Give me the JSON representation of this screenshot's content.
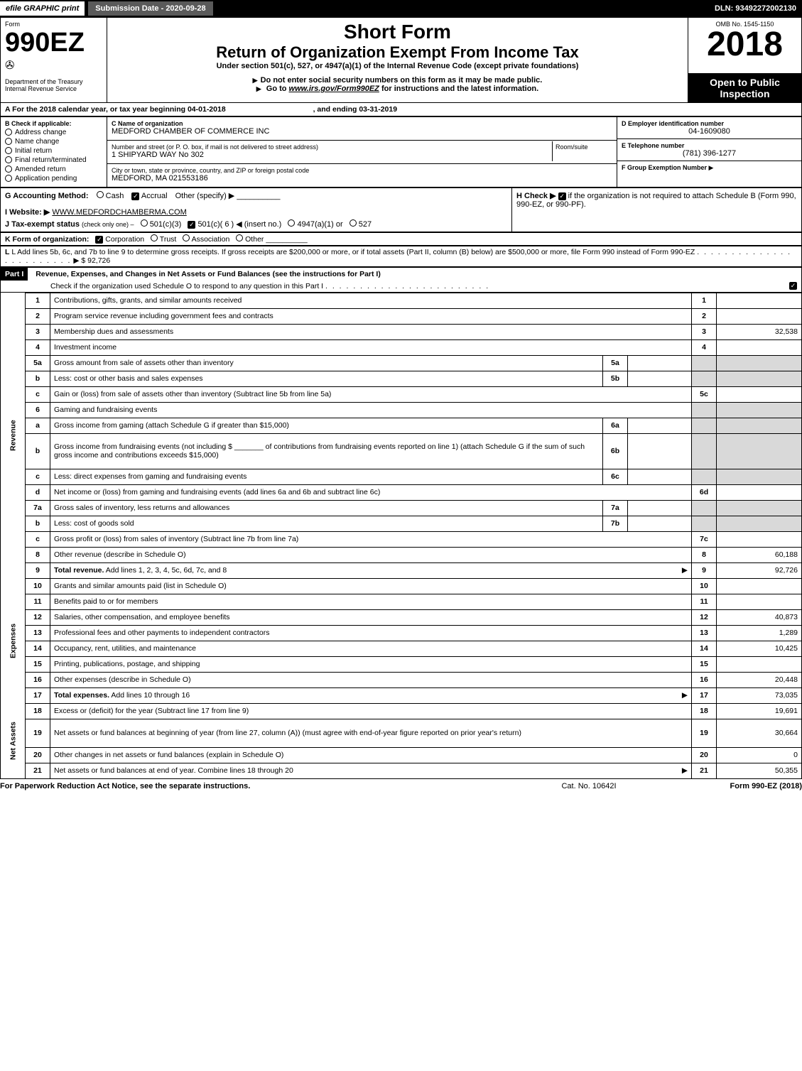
{
  "topbar": {
    "efile": "efile GRAPHIC print",
    "submission": "Submission Date - 2020-09-28",
    "dln": "DLN: 93492272002130"
  },
  "header": {
    "form_label": "Form",
    "form_number": "990EZ",
    "dept": "Department of the Treasury",
    "irs": "Internal Revenue Service",
    "short_form": "Short Form",
    "return_title": "Return of Organization Exempt From Income Tax",
    "subtitle": "Under section 501(c), 527, or 4947(a)(1) of the Internal Revenue Code (except private foundations)",
    "warning": "Do not enter social security numbers on this form as it may be made public.",
    "goto": "Go to",
    "goto_url": "www.irs.gov/Form990EZ",
    "goto_tail": "for instructions and the latest information.",
    "omb": "OMB No. 1545-1150",
    "year": "2018",
    "open": "Open to Public Inspection"
  },
  "period": {
    "line_a": "A For the 2018 calendar year, or tax year beginning 04-01-2018",
    "ending": ", and ending 03-31-2019"
  },
  "box_b": {
    "label": "B Check if applicable:",
    "items": [
      "Address change",
      "Name change",
      "Initial return",
      "Final return/terminated",
      "Amended return",
      "Application pending"
    ]
  },
  "box_c": {
    "name_label": "C Name of organization",
    "name": "MEDFORD CHAMBER OF COMMERCE INC",
    "street_label": "Number and street (or P. O. box, if mail is not delivered to street address)",
    "street": "1 SHIPYARD WAY No 302",
    "room_label": "Room/suite",
    "city_label": "City or town, state or province, country, and ZIP or foreign postal code",
    "city": "MEDFORD, MA  021553186"
  },
  "box_d": {
    "label": "D Employer identification number",
    "value": "04-1609080"
  },
  "box_e": {
    "label": "E Telephone number",
    "value": "(781) 396-1277"
  },
  "box_f": {
    "label": "F Group Exemption Number",
    "arrow": "▶"
  },
  "box_g": {
    "label": "G Accounting Method:",
    "cash": "Cash",
    "accrual": "Accrual",
    "other": "Other (specify) ▶"
  },
  "box_h": {
    "label_pre": "H Check ▶",
    "label_post": "if the organization is not required to attach Schedule B (Form 990, 990-EZ, or 990-PF)."
  },
  "box_i": {
    "label": "I Website: ▶",
    "value": "WWW.MEDFORDCHAMBERMA.COM"
  },
  "box_j": {
    "label": "J Tax-exempt status",
    "hint": "(check only one) –",
    "opt1": "501(c)(3)",
    "opt2": "501(c)( 6 )",
    "opt2_hint": "◀ (insert no.)",
    "opt3": "4947(a)(1) or",
    "opt4": "527"
  },
  "box_k": {
    "label": "K Form of organization:",
    "opt1": "Corporation",
    "opt2": "Trust",
    "opt3": "Association",
    "opt4": "Other"
  },
  "box_l": {
    "text": "L Add lines 5b, 6c, and 7b to line 9 to determine gross receipts. If gross receipts are $200,000 or more, or if total assets (Part II, column (B) below) are $500,000 or more, file Form 990 instead of Form 990-EZ",
    "arrow": "▶ $",
    "value": "92,726"
  },
  "part1": {
    "label": "Part I",
    "title": "Revenue, Expenses, and Changes in Net Assets or Fund Balances (see the instructions for Part I)",
    "check_line": "Check if the organization used Schedule O to respond to any question in this Part I"
  },
  "sidelabels": {
    "revenue": "Revenue",
    "expenses": "Expenses",
    "netassets": "Net Assets"
  },
  "lines": [
    {
      "n": "1",
      "desc": "Contributions, gifts, grants, and similar amounts received",
      "num": "1",
      "val": ""
    },
    {
      "n": "2",
      "desc": "Program service revenue including government fees and contracts",
      "num": "2",
      "val": ""
    },
    {
      "n": "3",
      "desc": "Membership dues and assessments",
      "num": "3",
      "val": "32,538"
    },
    {
      "n": "4",
      "desc": "Investment income",
      "num": "4",
      "val": ""
    },
    {
      "n": "5a",
      "desc": "Gross amount from sale of assets other than inventory",
      "sub": "5a",
      "subval": "",
      "grey": true
    },
    {
      "n": "b",
      "desc": "Less: cost or other basis and sales expenses",
      "sub": "5b",
      "subval": "",
      "grey": true
    },
    {
      "n": "c",
      "desc": "Gain or (loss) from sale of assets other than inventory (Subtract line 5b from line 5a)",
      "num": "5c",
      "val": ""
    },
    {
      "n": "6",
      "desc": "Gaming and fundraising events",
      "headeronly": true,
      "grey": true
    },
    {
      "n": "a",
      "desc": "Gross income from gaming (attach Schedule G if greater than $15,000)",
      "sub": "6a",
      "subval": "",
      "grey": true
    },
    {
      "n": "b",
      "desc": "Gross income from fundraising events (not including $ _______ of contributions from fundraising events reported on line 1) (attach Schedule G if the sum of such gross income and contributions exceeds $15,000)",
      "sub": "6b",
      "subval": "",
      "grey": true,
      "tall": true
    },
    {
      "n": "c",
      "desc": "Less: direct expenses from gaming and fundraising events",
      "sub": "6c",
      "subval": "",
      "grey": true
    },
    {
      "n": "d",
      "desc": "Net income or (loss) from gaming and fundraising events (add lines 6a and 6b and subtract line 6c)",
      "num": "6d",
      "val": ""
    },
    {
      "n": "7a",
      "desc": "Gross sales of inventory, less returns and allowances",
      "sub": "7a",
      "subval": "",
      "grey": true
    },
    {
      "n": "b",
      "desc": "Less: cost of goods sold",
      "sub": "7b",
      "subval": "",
      "grey": true
    },
    {
      "n": "c",
      "desc": "Gross profit or (loss) from sales of inventory (Subtract line 7b from line 7a)",
      "num": "7c",
      "val": ""
    },
    {
      "n": "8",
      "desc": "Other revenue (describe in Schedule O)",
      "num": "8",
      "val": "60,188"
    },
    {
      "n": "9",
      "desc": "Total revenue. Add lines 1, 2, 3, 4, 5c, 6d, 7c, and 8",
      "num": "9",
      "val": "92,726",
      "bold": true,
      "arrow": true
    }
  ],
  "expenses": [
    {
      "n": "10",
      "desc": "Grants and similar amounts paid (list in Schedule O)",
      "num": "10",
      "val": ""
    },
    {
      "n": "11",
      "desc": "Benefits paid to or for members",
      "num": "11",
      "val": ""
    },
    {
      "n": "12",
      "desc": "Salaries, other compensation, and employee benefits",
      "num": "12",
      "val": "40,873"
    },
    {
      "n": "13",
      "desc": "Professional fees and other payments to independent contractors",
      "num": "13",
      "val": "1,289"
    },
    {
      "n": "14",
      "desc": "Occupancy, rent, utilities, and maintenance",
      "num": "14",
      "val": "10,425"
    },
    {
      "n": "15",
      "desc": "Printing, publications, postage, and shipping",
      "num": "15",
      "val": ""
    },
    {
      "n": "16",
      "desc": "Other expenses (describe in Schedule O)",
      "num": "16",
      "val": "20,448"
    },
    {
      "n": "17",
      "desc": "Total expenses. Add lines 10 through 16",
      "num": "17",
      "val": "73,035",
      "bold": true,
      "arrow": true
    }
  ],
  "netassets": [
    {
      "n": "18",
      "desc": "Excess or (deficit) for the year (Subtract line 17 from line 9)",
      "num": "18",
      "val": "19,691"
    },
    {
      "n": "19",
      "desc": "Net assets or fund balances at beginning of year (from line 27, column (A)) (must agree with end-of-year figure reported on prior year's return)",
      "num": "19",
      "val": "30,664",
      "tall": true
    },
    {
      "n": "20",
      "desc": "Other changes in net assets or fund balances (explain in Schedule O)",
      "num": "20",
      "val": "0"
    },
    {
      "n": "21",
      "desc": "Net assets or fund balances at end of year. Combine lines 18 through 20",
      "num": "21",
      "val": "50,355",
      "arrow": true
    }
  ],
  "footer": {
    "left": "For Paperwork Reduction Act Notice, see the separate instructions.",
    "mid": "Cat. No. 10642I",
    "right": "Form 990-EZ (2018)"
  },
  "colors": {
    "black": "#000000",
    "white": "#ffffff",
    "grey": "#d9d9d9",
    "topbar_grey": "#5a5a5a"
  }
}
